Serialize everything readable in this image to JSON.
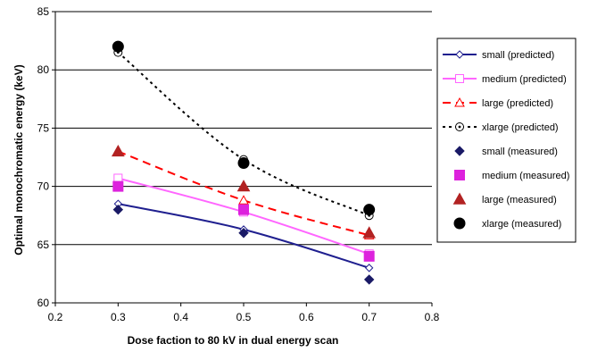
{
  "chart_data": {
    "type": "line",
    "title": "",
    "xlabel": "Dose faction to 80 kV in dual energy scan",
    "ylabel": "Optimal monochromatic energy (keV)",
    "xlim": [
      0.2,
      0.8
    ],
    "ylim": [
      60,
      85
    ],
    "xticks": [
      "0.2",
      "0.3",
      "0.4",
      "0.5",
      "0.6",
      "0.7",
      "0.8"
    ],
    "yticks": [
      "60",
      "65",
      "70",
      "75",
      "80",
      "85"
    ],
    "grid": "horizontal",
    "legend_position": "right",
    "series": [
      {
        "name": "small (predicted)",
        "kind": "line",
        "color": "#1f1f8f",
        "dash": "",
        "marker": "diamond-open",
        "x": [
          0.3,
          0.5,
          0.7
        ],
        "y": [
          68.5,
          66.3,
          63.0
        ]
      },
      {
        "name": "medium (predicted)",
        "kind": "line",
        "color": "#ff66ff",
        "dash": "",
        "marker": "square-open",
        "x": [
          0.3,
          0.5,
          0.7
        ],
        "y": [
          70.7,
          67.8,
          64.2
        ]
      },
      {
        "name": "large (predicted)",
        "kind": "line",
        "color": "#ff0000",
        "dash": "9,6",
        "marker": "triangle-open",
        "x": [
          0.3,
          0.5,
          0.7
        ],
        "y": [
          73.0,
          68.8,
          65.8
        ]
      },
      {
        "name": "xlarge (predicted)",
        "kind": "line",
        "color": "#000000",
        "dash": "3,4",
        "marker": "circle-open",
        "x": [
          0.3,
          0.5,
          0.7
        ],
        "y": [
          81.5,
          72.3,
          67.5
        ]
      },
      {
        "name": "small (measured)",
        "kind": "points",
        "color": "#1a1a66",
        "marker": "diamond",
        "x": [
          0.3,
          0.5,
          0.7
        ],
        "y": [
          68.0,
          66.0,
          62.0
        ]
      },
      {
        "name": "medium (measured)",
        "kind": "points",
        "color": "#dd22dd",
        "marker": "square",
        "x": [
          0.3,
          0.5,
          0.7
        ],
        "y": [
          70.0,
          68.0,
          64.0
        ]
      },
      {
        "name": "large (measured)",
        "kind": "points",
        "color": "#b22222",
        "marker": "triangle",
        "x": [
          0.3,
          0.5,
          0.7
        ],
        "y": [
          73.0,
          70.0,
          66.0
        ]
      },
      {
        "name": "xlarge (measured)",
        "kind": "points",
        "color": "#000000",
        "marker": "circle",
        "x": [
          0.3,
          0.5,
          0.7
        ],
        "y": [
          82.0,
          72.0,
          68.0
        ]
      }
    ]
  }
}
